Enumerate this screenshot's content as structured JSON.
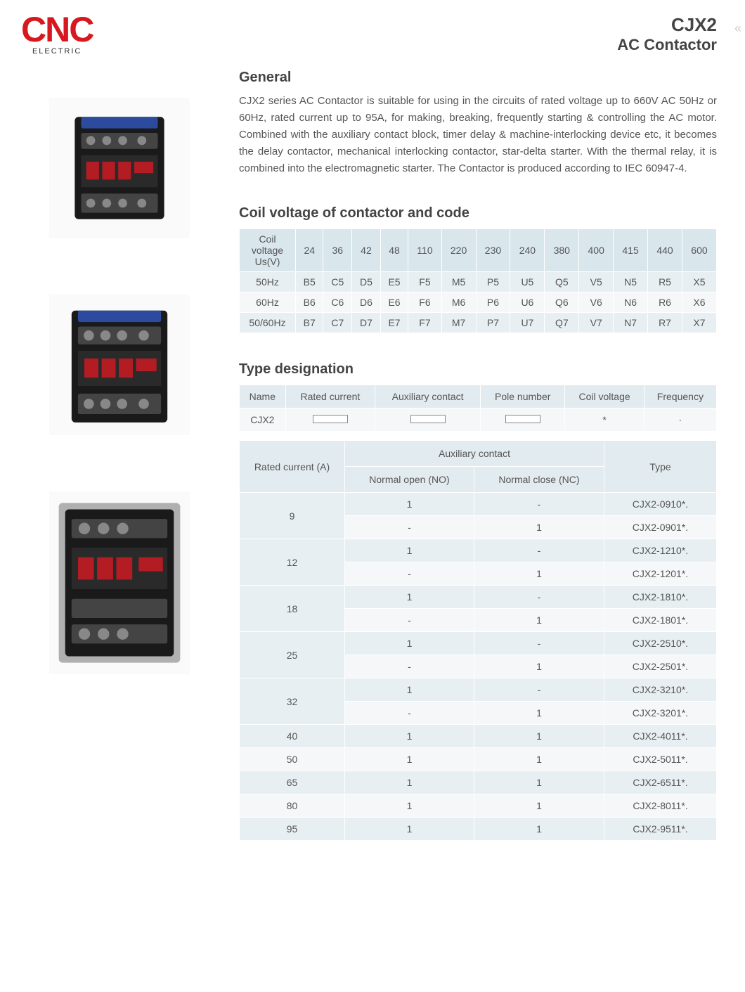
{
  "logo": {
    "main": "CNC",
    "sub": "ELECTRIC"
  },
  "title": {
    "main": "CJX2",
    "sub": "AC Contactor"
  },
  "chevrons": "«",
  "general": {
    "heading": "General",
    "text": "CJX2 series AC Contactor is suitable for using in the circuits of rated voltage up to 660V AC 50Hz or 60Hz, rated current up to 95A, for making, breaking, frequently starting & controlling the AC motor. Combined with the auxiliary contact block, timer delay & machine-interlocking device etc, it becomes the delay contactor, mechanical interlocking contactor, star-delta starter. With the thermal relay, it is combined into the electromagnetic starter. The Contactor is produced  according to IEC 60947-4."
  },
  "coil": {
    "heading": "Coil voltage of contactor and code",
    "header_label": "Coil voltage Us(V)",
    "voltages": [
      "24",
      "36",
      "42",
      "48",
      "110",
      "220",
      "230",
      "240",
      "380",
      "400",
      "415",
      "440",
      "600"
    ],
    "rows": [
      {
        "label": "50Hz",
        "codes": [
          "B5",
          "C5",
          "D5",
          "E5",
          "F5",
          "M5",
          "P5",
          "U5",
          "Q5",
          "V5",
          "N5",
          "R5",
          "X5"
        ]
      },
      {
        "label": "60Hz",
        "codes": [
          "B6",
          "C6",
          "D6",
          "E6",
          "F6",
          "M6",
          "P6",
          "U6",
          "Q6",
          "V6",
          "N6",
          "R6",
          "X6"
        ]
      },
      {
        "label": "50/60Hz",
        "codes": [
          "B7",
          "C7",
          "D7",
          "E7",
          "F7",
          "M7",
          "P7",
          "U7",
          "Q7",
          "V7",
          "N7",
          "R7",
          "X7"
        ]
      }
    ]
  },
  "type_desig": {
    "heading": "Type designation",
    "headers": [
      "Name",
      "Rated current",
      "Auxiliary contact",
      "Pole number",
      "Coil voltage",
      "Frequency"
    ],
    "row": [
      "CJX2",
      "[box]",
      "[box]",
      "[box]",
      "*",
      "·"
    ]
  },
  "main_table": {
    "headers": {
      "rated_current": "Rated current (A)",
      "aux": "Auxiliary contact",
      "no": "Normal open (NO)",
      "nc": "Normal close (NC)",
      "type": "Type"
    },
    "rows": [
      {
        "current": "9",
        "span": 2,
        "cells": [
          [
            "1",
            "-",
            "CJX2-0910*."
          ],
          [
            "-",
            "1",
            "CJX2-0901*."
          ]
        ]
      },
      {
        "current": "12",
        "span": 2,
        "cells": [
          [
            "1",
            "-",
            "CJX2-1210*."
          ],
          [
            "-",
            "1",
            "CJX2-1201*."
          ]
        ]
      },
      {
        "current": "18",
        "span": 2,
        "cells": [
          [
            "1",
            "-",
            "CJX2-1810*."
          ],
          [
            "-",
            "1",
            "CJX2-1801*."
          ]
        ]
      },
      {
        "current": "25",
        "span": 2,
        "cells": [
          [
            "1",
            "-",
            "CJX2-2510*."
          ],
          [
            "-",
            "1",
            "CJX2-2501*."
          ]
        ]
      },
      {
        "current": "32",
        "span": 2,
        "cells": [
          [
            "1",
            "-",
            "CJX2-3210*."
          ],
          [
            "-",
            "1",
            "CJX2-3201*."
          ]
        ]
      },
      {
        "current": "40",
        "span": 1,
        "cells": [
          [
            "1",
            "1",
            "CJX2-4011*."
          ]
        ]
      },
      {
        "current": "50",
        "span": 1,
        "cells": [
          [
            "1",
            "1",
            "CJX2-5011*."
          ]
        ]
      },
      {
        "current": "65",
        "span": 1,
        "cells": [
          [
            "1",
            "1",
            "CJX2-6511*."
          ]
        ]
      },
      {
        "current": "80",
        "span": 1,
        "cells": [
          [
            "1",
            "1",
            "CJX2-8011*."
          ]
        ]
      },
      {
        "current": "95",
        "span": 1,
        "cells": [
          [
            "1",
            "1",
            "CJX2-9511*."
          ]
        ]
      }
    ]
  },
  "colors": {
    "brand_red": "#d8181f",
    "header_bg": "#e2ebef",
    "row_alt1": "#e8eff2",
    "row_alt2": "#f5f7f8",
    "text": "#555555"
  }
}
